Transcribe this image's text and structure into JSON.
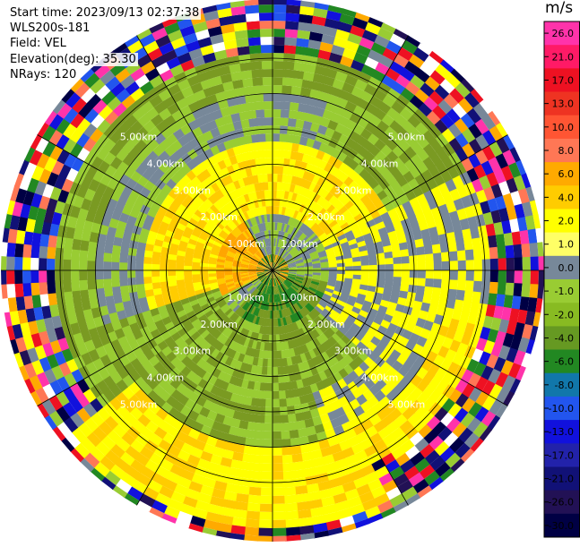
{
  "header": {
    "start_time": "Start time: 2023/09/13 02:37:38",
    "site": "WLS200s-181",
    "field": "Field: VEL",
    "elevation": "Elevation(deg): 35.30",
    "nrays": "NRays: 120"
  },
  "ppi": {
    "field": "VEL",
    "range_rings_km": [
      1,
      2,
      3,
      4,
      5,
      6
    ],
    "ring_labels": [
      "1.00km",
      "2.00km",
      "3.00km",
      "4.00km",
      "5.00km"
    ],
    "ray_count": 120
  },
  "colorbar": {
    "unit": "m/s",
    "levels": [
      "26.0",
      "21.0",
      "17.0",
      "13.0",
      "10.0",
      "8.0",
      "6.0",
      "4.0",
      "2.0",
      "1.0",
      "0.0",
      "-1.0",
      "-2.0",
      "-4.0",
      "-6.0",
      "-8.0",
      "-10.0",
      "-13.0",
      "-17.0",
      "-21.0",
      "-26.0",
      "-30.0"
    ],
    "colors": [
      "#ff33aa",
      "#ff1a66",
      "#ee1122",
      "#ee3322",
      "#ff5533",
      "#ff7755",
      "#ffaa00",
      "#ffcc00",
      "#ffff00",
      "#ffff66",
      "#778899",
      "#99cc33",
      "#88bb22",
      "#669922",
      "#228822",
      "#1177aa",
      "#2255ee",
      "#1111dd",
      "#2222aa",
      "#111177",
      "#221155",
      "#000044"
    ]
  }
}
